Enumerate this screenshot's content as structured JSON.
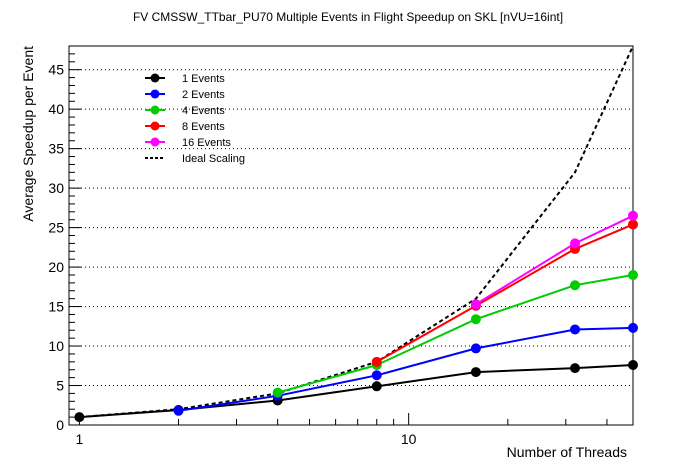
{
  "chart_data": {
    "type": "line",
    "title": "FV CMSSW_TTbar_PU70 Multiple Events in Flight Speedup on SKL [nVU=16int]",
    "xlabel": "Number of Threads",
    "ylabel": "Average Speedup per Event",
    "xscale": "log",
    "xlim": [
      0.93,
      48
    ],
    "ylim": [
      0,
      48
    ],
    "x_ticks": [
      {
        "value": 1,
        "label": "1"
      },
      {
        "value": 10,
        "label": "10"
      }
    ],
    "y_ticks": [
      0,
      5,
      10,
      15,
      20,
      25,
      30,
      35,
      40,
      45
    ],
    "grid": "horizontal dotted",
    "legend_position": "top-left",
    "series": [
      {
        "name": "1 Events",
        "color": "#000000",
        "marker": "circle",
        "x": [
          1,
          2,
          4,
          8,
          16,
          32,
          48
        ],
        "y": [
          1.0,
          1.9,
          3.1,
          4.9,
          6.7,
          7.2,
          7.6
        ]
      },
      {
        "name": "2 Events",
        "color": "#0000ff",
        "marker": "circle",
        "x": [
          2,
          4,
          8,
          16,
          32,
          48
        ],
        "y": [
          1.8,
          3.7,
          6.3,
          9.7,
          12.1,
          12.3
        ]
      },
      {
        "name": "4 Events",
        "color": "#00cc00",
        "marker": "circle",
        "x": [
          4,
          8,
          16,
          32,
          48
        ],
        "y": [
          4.1,
          7.6,
          13.4,
          17.7,
          19.0
        ]
      },
      {
        "name": "8 Events",
        "color": "#ff0000",
        "marker": "circle",
        "x": [
          8,
          16,
          32,
          48
        ],
        "y": [
          8.0,
          15.1,
          22.3,
          25.4
        ]
      },
      {
        "name": "16 Events",
        "color": "#ff00ff",
        "marker": "circle",
        "x": [
          16,
          32,
          48
        ],
        "y": [
          15.3,
          23.0,
          26.5
        ]
      },
      {
        "name": "Ideal Scaling",
        "color": "#000000",
        "marker": "none",
        "dashed": true,
        "x": [
          1,
          2,
          4,
          8,
          16,
          32,
          48
        ],
        "y": [
          1,
          2,
          4,
          8,
          16,
          32,
          48
        ]
      }
    ]
  }
}
